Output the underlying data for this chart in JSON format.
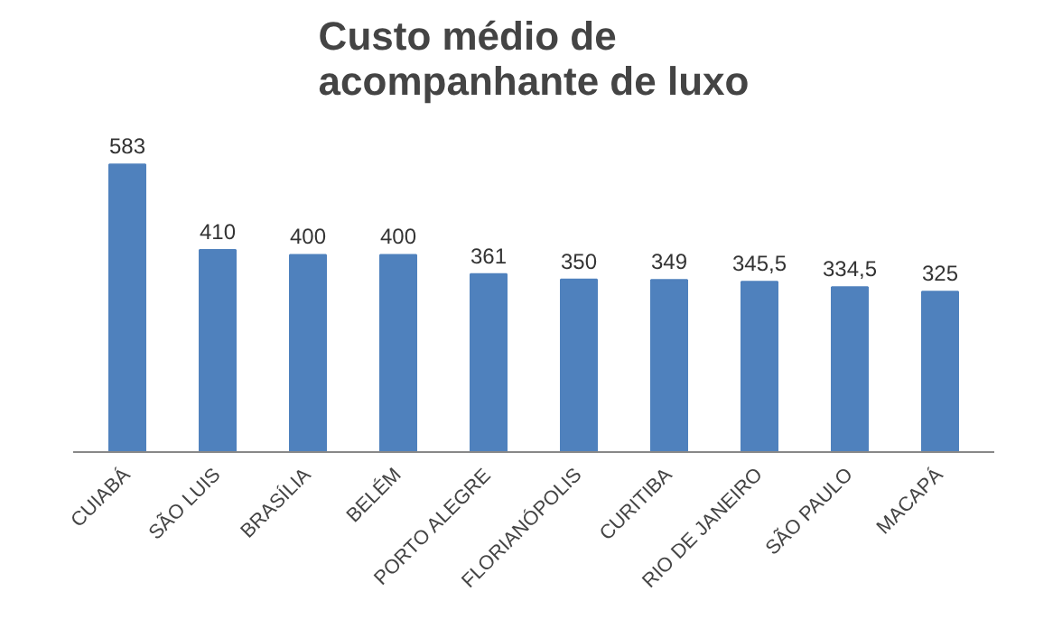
{
  "chart_data": {
    "type": "bar",
    "title": "Custo médio de acompanhante de luxo",
    "categories": [
      "CUIABÁ",
      "SÃO LUIS",
      "BRASÍLIA",
      "BELÉM",
      "PORTO ALEGRE",
      "FLORIANÓPOLIS",
      "CURITIBA",
      "RIO DE JANEIRO",
      "SÃO PAULO",
      "MACAPÁ"
    ],
    "values": [
      583,
      410,
      400,
      400,
      361,
      350,
      349,
      345.5,
      334.5,
      325
    ],
    "value_labels": [
      "583",
      "410",
      "400",
      "400",
      "361",
      "350",
      "349",
      "345,5",
      "334,5",
      "325"
    ],
    "color": "#4f81bd",
    "grid": false
  }
}
